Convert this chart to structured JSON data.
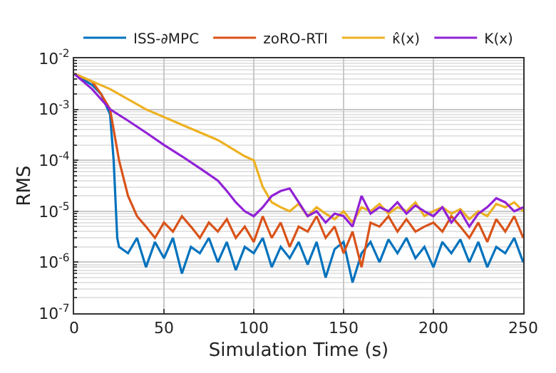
{
  "chart_data": {
    "type": "line",
    "xlabel": "Simulation Time (s)",
    "ylabel": "RMS",
    "log": "y",
    "grid": true,
    "legend": "top",
    "xlim": [
      0,
      250
    ],
    "xticks": [
      0,
      50,
      100,
      150,
      200,
      250
    ],
    "ylim": [
      1e-07,
      0.01
    ],
    "yticks": [
      {
        "value": 1e-07,
        "label": "10$^{-7}$"
      },
      {
        "value": 1e-06,
        "label": "10$^{-6}$"
      },
      {
        "value": 1e-05,
        "label": "10$^{-5}$"
      },
      {
        "value": 0.0001,
        "label": "10$^{-4}$"
      },
      {
        "value": 0.001,
        "label": "10$^{-3}$"
      },
      {
        "value": 0.01,
        "label": "10$^{-2}$"
      }
    ],
    "series": [
      {
        "name": "ISS-∂MPC",
        "color": "#0072bd",
        "x": [
          0,
          10,
          15,
          20,
          22,
          24,
          25,
          30,
          35,
          40,
          45,
          50,
          55,
          60,
          65,
          70,
          75,
          80,
          85,
          90,
          95,
          100,
          105,
          110,
          115,
          120,
          125,
          130,
          135,
          140,
          145,
          150,
          155,
          160,
          165,
          170,
          175,
          180,
          185,
          190,
          195,
          200,
          205,
          210,
          215,
          220,
          225,
          230,
          235,
          240,
          245,
          250
        ],
        "values": [
          0.005,
          0.003,
          0.002,
          0.0008,
          0.0001,
          3e-06,
          2e-06,
          1.5e-06,
          3e-06,
          8e-07,
          2.5e-06,
          1.2e-06,
          3e-06,
          6e-07,
          2e-06,
          1.5e-06,
          3e-06,
          1e-06,
          2.5e-06,
          7e-07,
          2e-06,
          1.5e-06,
          3e-06,
          8e-07,
          2e-06,
          1.2e-06,
          2.5e-06,
          9e-07,
          2.5e-06,
          5e-07,
          1.8e-06,
          2.5e-06,
          4e-07,
          1.5e-06,
          2.5e-06,
          1e-06,
          2.8e-06,
          1.5e-06,
          3e-06,
          1.2e-06,
          2e-06,
          8e-07,
          2.5e-06,
          1.5e-06,
          2.8e-06,
          1e-06,
          2.5e-06,
          8e-07,
          2e-06,
          1.5e-06,
          3e-06,
          1e-06
        ]
      },
      {
        "name": "zoRO-RTI",
        "color": "#d95319",
        "x": [
          0,
          10,
          15,
          20,
          25,
          30,
          35,
          40,
          45,
          50,
          55,
          60,
          65,
          70,
          75,
          80,
          85,
          90,
          95,
          100,
          105,
          110,
          115,
          120,
          125,
          130,
          135,
          140,
          145,
          150,
          155,
          160,
          165,
          170,
          175,
          180,
          185,
          190,
          195,
          200,
          205,
          210,
          215,
          220,
          225,
          230,
          235,
          240,
          245,
          250
        ],
        "values": [
          0.005,
          0.0035,
          0.002,
          0.001,
          0.0001,
          2e-05,
          8e-06,
          5e-06,
          3e-06,
          6e-06,
          4e-06,
          8e-06,
          5e-06,
          3e-06,
          6e-06,
          4e-06,
          7e-06,
          3e-06,
          5e-06,
          2.5e-06,
          8e-06,
          3e-06,
          6e-06,
          2e-06,
          5e-06,
          4e-06,
          8e-06,
          3e-06,
          5e-06,
          1.5e-06,
          4e-06,
          8e-07,
          6e-06,
          5e-06,
          8e-06,
          4e-06,
          7e-06,
          4e-06,
          5e-06,
          6e-06,
          4e-06,
          8e-06,
          5e-06,
          3e-06,
          6e-06,
          2.5e-06,
          7e-06,
          4e-06,
          8e-06,
          3e-06
        ]
      },
      {
        "name": "κ̂(x)",
        "color": "#edb120",
        "x": [
          0,
          20,
          40,
          60,
          80,
          95,
          100,
          105,
          110,
          115,
          120,
          125,
          130,
          135,
          140,
          145,
          150,
          155,
          160,
          165,
          170,
          175,
          180,
          185,
          190,
          195,
          200,
          205,
          210,
          215,
          220,
          225,
          230,
          235,
          240,
          245,
          250
        ],
        "values": [
          0.005,
          0.0025,
          0.001,
          0.0005,
          0.00025,
          0.00012,
          0.0001,
          3e-05,
          1.5e-05,
          1.2e-05,
          1e-05,
          1.4e-05,
          8e-06,
          1.2e-05,
          9e-06,
          7e-06,
          1e-05,
          6e-06,
          1.2e-05,
          1e-05,
          1.4e-05,
          9e-06,
          1.2e-05,
          1e-05,
          1.5e-05,
          8e-06,
          1e-05,
          1.2e-05,
          9e-06,
          1.1e-05,
          7e-06,
          1e-05,
          8e-06,
          1.4e-05,
          1.2e-05,
          1.5e-05,
          1e-05
        ]
      },
      {
        "name": "K(x)",
        "color": "#9122d6",
        "x": [
          0,
          10,
          20,
          30,
          40,
          50,
          60,
          70,
          80,
          85,
          90,
          95,
          100,
          105,
          110,
          115,
          120,
          125,
          130,
          135,
          140,
          145,
          150,
          155,
          160,
          165,
          170,
          175,
          180,
          185,
          190,
          195,
          200,
          205,
          210,
          215,
          220,
          225,
          230,
          235,
          240,
          245,
          250
        ],
        "values": [
          0.005,
          0.0025,
          0.001,
          0.0006,
          0.00035,
          0.0002,
          0.00012,
          7e-05,
          4e-05,
          2.5e-05,
          1.5e-05,
          1e-05,
          8e-06,
          1.2e-05,
          2e-05,
          2.5e-05,
          2.8e-05,
          1.5e-05,
          8e-06,
          1e-05,
          6e-06,
          9e-06,
          8e-06,
          5e-06,
          2e-05,
          9e-06,
          1.2e-05,
          1e-05,
          1.5e-05,
          9e-06,
          1.3e-05,
          1e-05,
          8e-06,
          1.2e-05,
          6e-06,
          1e-05,
          5e-06,
          9e-06,
          1.2e-05,
          1.8e-05,
          1.5e-05,
          1e-05,
          1.2e-05
        ]
      }
    ]
  }
}
